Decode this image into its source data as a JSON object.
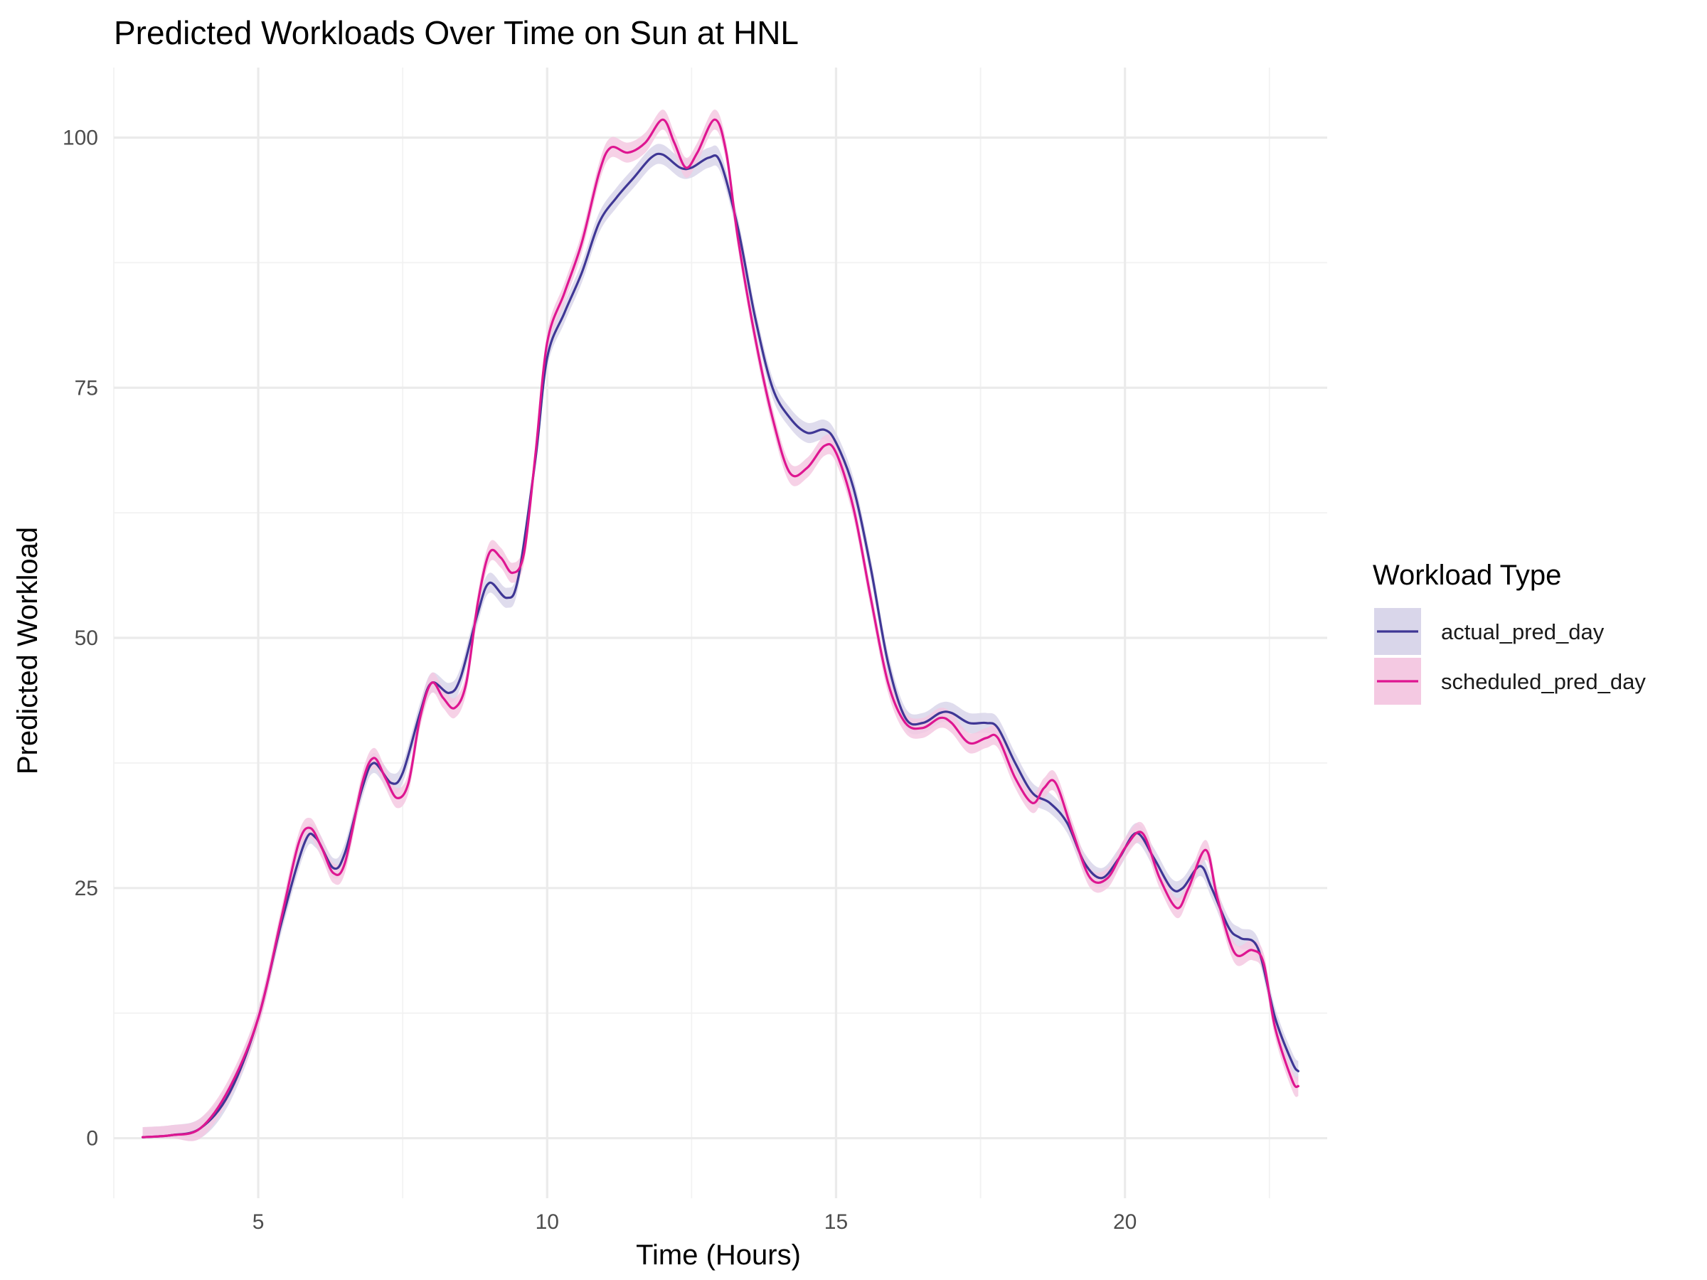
{
  "chart_data": {
    "type": "line",
    "title": "Predicted Workloads Over Time on Sun at HNL",
    "xlabel": "Time (Hours)",
    "ylabel": "Predicted Workload",
    "xlim": [
      2.5,
      23.5
    ],
    "ylim": [
      -6,
      107
    ],
    "x_ticks": [
      5,
      10,
      15,
      20
    ],
    "y_ticks": [
      0,
      25,
      50,
      75,
      100
    ],
    "grid": true,
    "legend": {
      "title": "Workload Type",
      "placement": "right"
    },
    "series": [
      {
        "name": "actual_pred_day",
        "color": "#3f3795",
        "band_color": "#d9d6ea",
        "points": [
          [
            3.0,
            0.1
          ],
          [
            3.5,
            0.3
          ],
          [
            4.0,
            1.0
          ],
          [
            4.5,
            4.5
          ],
          [
            5.0,
            12.0
          ],
          [
            5.4,
            21.5
          ],
          [
            5.8,
            29.5
          ],
          [
            6.0,
            30.0
          ],
          [
            6.3,
            27.0
          ],
          [
            6.5,
            28.5
          ],
          [
            6.8,
            35.0
          ],
          [
            7.0,
            37.5
          ],
          [
            7.3,
            35.5
          ],
          [
            7.5,
            36.5
          ],
          [
            7.8,
            42.5
          ],
          [
            8.0,
            45.5
          ],
          [
            8.3,
            44.5
          ],
          [
            8.5,
            46.0
          ],
          [
            8.8,
            52.5
          ],
          [
            9.0,
            55.5
          ],
          [
            9.3,
            54.0
          ],
          [
            9.5,
            56.0
          ],
          [
            9.8,
            68.0
          ],
          [
            10.0,
            78.0
          ],
          [
            10.3,
            82.5
          ],
          [
            10.6,
            86.5
          ],
          [
            10.9,
            91.5
          ],
          [
            11.2,
            94.0
          ],
          [
            11.5,
            96.0
          ],
          [
            11.8,
            98.0
          ],
          [
            12.0,
            98.3
          ],
          [
            12.3,
            97.0
          ],
          [
            12.5,
            97.0
          ],
          [
            12.8,
            98.0
          ],
          [
            13.0,
            97.5
          ],
          [
            13.3,
            91.0
          ],
          [
            13.6,
            82.0
          ],
          [
            13.9,
            75.0
          ],
          [
            14.2,
            72.0
          ],
          [
            14.5,
            70.5
          ],
          [
            14.8,
            70.8
          ],
          [
            15.0,
            69.5
          ],
          [
            15.3,
            65.0
          ],
          [
            15.6,
            57.0
          ],
          [
            15.9,
            47.5
          ],
          [
            16.2,
            42.0
          ],
          [
            16.5,
            41.5
          ],
          [
            16.8,
            42.5
          ],
          [
            17.0,
            42.5
          ],
          [
            17.3,
            41.5
          ],
          [
            17.6,
            41.5
          ],
          [
            17.8,
            41.0
          ],
          [
            18.1,
            37.5
          ],
          [
            18.4,
            34.5
          ],
          [
            18.7,
            33.5
          ],
          [
            19.0,
            31.5
          ],
          [
            19.3,
            27.5
          ],
          [
            19.6,
            26.0
          ],
          [
            19.9,
            28.0
          ],
          [
            20.2,
            30.5
          ],
          [
            20.5,
            28.0
          ],
          [
            20.8,
            25.0
          ],
          [
            21.0,
            25.0
          ],
          [
            21.3,
            27.2
          ],
          [
            21.5,
            25.0
          ],
          [
            21.8,
            21.0
          ],
          [
            22.0,
            20.0
          ],
          [
            22.3,
            19.0
          ],
          [
            22.6,
            12.0
          ],
          [
            22.9,
            7.5
          ],
          [
            23.0,
            6.7
          ]
        ]
      },
      {
        "name": "scheduled_pred_day",
        "color": "#de1691",
        "band_color": "#f4c9e2",
        "points": [
          [
            3.0,
            0.1
          ],
          [
            3.5,
            0.3
          ],
          [
            4.0,
            1.0
          ],
          [
            4.5,
            5.0
          ],
          [
            5.0,
            12.0
          ],
          [
            5.4,
            22.0
          ],
          [
            5.7,
            29.5
          ],
          [
            5.9,
            31.0
          ],
          [
            6.1,
            29.0
          ],
          [
            6.3,
            26.5
          ],
          [
            6.5,
            27.5
          ],
          [
            6.8,
            35.5
          ],
          [
            7.0,
            38.0
          ],
          [
            7.2,
            36.0
          ],
          [
            7.4,
            34.0
          ],
          [
            7.6,
            35.5
          ],
          [
            7.8,
            42.0
          ],
          [
            8.0,
            45.5
          ],
          [
            8.2,
            44.0
          ],
          [
            8.4,
            43.0
          ],
          [
            8.6,
            45.5
          ],
          [
            8.8,
            53.5
          ],
          [
            9.0,
            58.5
          ],
          [
            9.2,
            58.0
          ],
          [
            9.4,
            56.5
          ],
          [
            9.6,
            58.5
          ],
          [
            9.8,
            68.5
          ],
          [
            10.0,
            79.5
          ],
          [
            10.3,
            84.5
          ],
          [
            10.6,
            89.5
          ],
          [
            10.9,
            96.5
          ],
          [
            11.1,
            99.0
          ],
          [
            11.4,
            98.5
          ],
          [
            11.7,
            99.5
          ],
          [
            12.0,
            101.8
          ],
          [
            12.2,
            99.5
          ],
          [
            12.4,
            97.0
          ],
          [
            12.6,
            98.5
          ],
          [
            12.9,
            101.8
          ],
          [
            13.1,
            98.5
          ],
          [
            13.3,
            90.0
          ],
          [
            13.6,
            80.0
          ],
          [
            13.9,
            72.0
          ],
          [
            14.2,
            66.5
          ],
          [
            14.5,
            67.0
          ],
          [
            14.8,
            69.2
          ],
          [
            15.0,
            68.5
          ],
          [
            15.3,
            63.0
          ],
          [
            15.6,
            54.0
          ],
          [
            15.9,
            45.5
          ],
          [
            16.2,
            41.5
          ],
          [
            16.5,
            41.0
          ],
          [
            16.8,
            42.0
          ],
          [
            17.0,
            41.5
          ],
          [
            17.3,
            39.5
          ],
          [
            17.6,
            40.0
          ],
          [
            17.8,
            40.0
          ],
          [
            18.1,
            36.0
          ],
          [
            18.4,
            33.5
          ],
          [
            18.6,
            35.0
          ],
          [
            18.8,
            35.5
          ],
          [
            19.1,
            30.5
          ],
          [
            19.4,
            26.0
          ],
          [
            19.7,
            26.0
          ],
          [
            20.0,
            29.0
          ],
          [
            20.3,
            30.5
          ],
          [
            20.6,
            26.0
          ],
          [
            20.9,
            23.0
          ],
          [
            21.1,
            25.0
          ],
          [
            21.4,
            28.8
          ],
          [
            21.6,
            24.0
          ],
          [
            21.9,
            18.5
          ],
          [
            22.2,
            18.8
          ],
          [
            22.4,
            17.5
          ],
          [
            22.6,
            11.0
          ],
          [
            22.9,
            5.7
          ],
          [
            23.0,
            5.2
          ]
        ]
      }
    ]
  }
}
